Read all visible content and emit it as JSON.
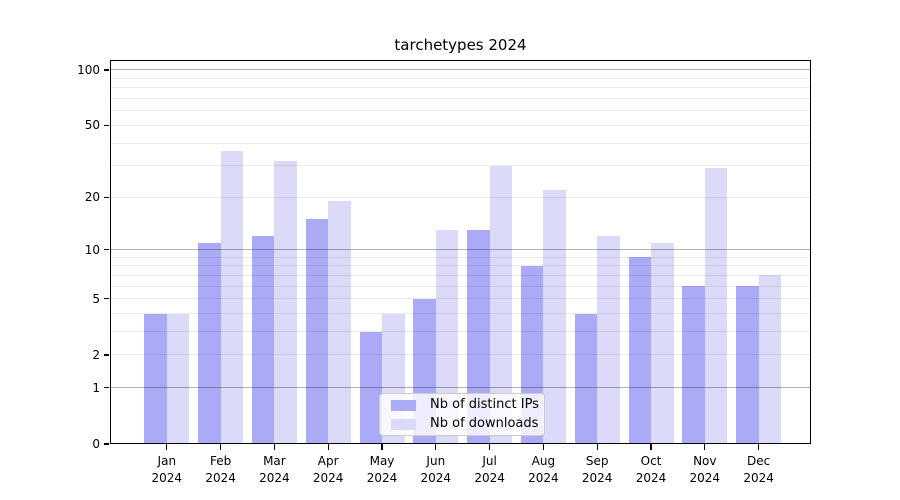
{
  "chart_data": {
    "type": "bar",
    "title": "tarchetypes 2024",
    "categories": [
      {
        "month": "Jan",
        "year": "2024"
      },
      {
        "month": "Feb",
        "year": "2024"
      },
      {
        "month": "Mar",
        "year": "2024"
      },
      {
        "month": "Apr",
        "year": "2024"
      },
      {
        "month": "May",
        "year": "2024"
      },
      {
        "month": "Jun",
        "year": "2024"
      },
      {
        "month": "Jul",
        "year": "2024"
      },
      {
        "month": "Aug",
        "year": "2024"
      },
      {
        "month": "Sep",
        "year": "2024"
      },
      {
        "month": "Oct",
        "year": "2024"
      },
      {
        "month": "Nov",
        "year": "2024"
      },
      {
        "month": "Dec",
        "year": "2024"
      }
    ],
    "series": [
      {
        "name": "Nb of distinct IPs",
        "color": "#aaaaf7",
        "values": [
          4,
          11,
          12,
          15,
          3,
          5,
          13,
          8,
          4,
          9,
          6,
          6
        ]
      },
      {
        "name": "Nb of downloads",
        "color": "#dbdbf9",
        "values": [
          4,
          36,
          32,
          19,
          4,
          13,
          30,
          22,
          12,
          11,
          29,
          7
        ]
      }
    ],
    "xlabel": "",
    "ylabel": "",
    "yscale": "log1p",
    "ylim": [
      0,
      113
    ],
    "ytick_labels": [
      0,
      1,
      2,
      5,
      10,
      20,
      50,
      100
    ],
    "major_gridlines": [
      1,
      10,
      100
    ],
    "minor_gridlines": [
      2,
      3,
      4,
      5,
      6,
      7,
      8,
      9,
      20,
      30,
      40,
      50,
      60,
      70,
      80,
      90
    ],
    "grid": true,
    "legend_position": "lower center"
  }
}
